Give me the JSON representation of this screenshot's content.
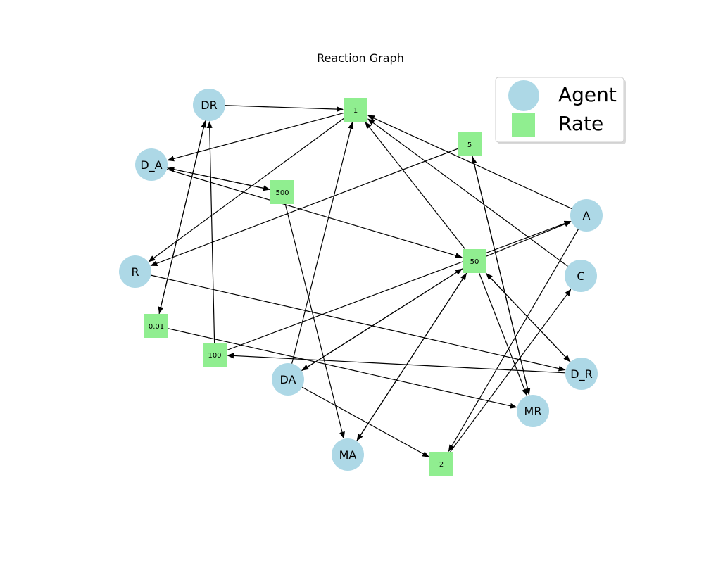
{
  "title": "Reaction Graph",
  "legend": {
    "entries": [
      {
        "label": "Agent",
        "kind": "agent"
      },
      {
        "label": "Rate",
        "kind": "rate"
      }
    ],
    "placement": "top-right"
  },
  "colors": {
    "agent": "#add8e6",
    "rate": "#90ee90",
    "edge": "#000000"
  },
  "nodes": [
    {
      "id": "DR",
      "label": "DR",
      "kind": "agent"
    },
    {
      "id": "D_A",
      "label": "D_A",
      "kind": "agent"
    },
    {
      "id": "R",
      "label": "R",
      "kind": "agent"
    },
    {
      "id": "DA",
      "label": "DA",
      "kind": "agent"
    },
    {
      "id": "MA",
      "label": "MA",
      "kind": "agent"
    },
    {
      "id": "MR",
      "label": "MR",
      "kind": "agent"
    },
    {
      "id": "D_R",
      "label": "D_R",
      "kind": "agent"
    },
    {
      "id": "C",
      "label": "C",
      "kind": "agent"
    },
    {
      "id": "A",
      "label": "A",
      "kind": "agent"
    },
    {
      "id": "r1",
      "label": "1",
      "kind": "rate"
    },
    {
      "id": "r5",
      "label": "5",
      "kind": "rate"
    },
    {
      "id": "r500",
      "label": "500",
      "kind": "rate"
    },
    {
      "id": "r50",
      "label": "50",
      "kind": "rate"
    },
    {
      "id": "r001",
      "label": "0.01",
      "kind": "rate"
    },
    {
      "id": "r100",
      "label": "100",
      "kind": "rate"
    },
    {
      "id": "r2",
      "label": "2",
      "kind": "rate"
    }
  ],
  "edges": [
    {
      "from": "DR",
      "to": "r1"
    },
    {
      "from": "r1",
      "to": "D_A"
    },
    {
      "from": "r1",
      "to": "R"
    },
    {
      "from": "A",
      "to": "r1"
    },
    {
      "from": "C",
      "to": "r1"
    },
    {
      "from": "r50",
      "to": "r1"
    },
    {
      "from": "DA",
      "to": "r1"
    },
    {
      "from": "D_A",
      "to": "r500"
    },
    {
      "from": "r500",
      "to": "D_A"
    },
    {
      "from": "r500",
      "to": "MA"
    },
    {
      "from": "D_A",
      "to": "r50"
    },
    {
      "from": "r5",
      "to": "R"
    },
    {
      "from": "r5",
      "to": "MR"
    },
    {
      "from": "MR",
      "to": "r5"
    },
    {
      "from": "r50",
      "to": "A"
    },
    {
      "from": "r100",
      "to": "A"
    },
    {
      "from": "r50",
      "to": "DA"
    },
    {
      "from": "DA",
      "to": "r50"
    },
    {
      "from": "r50",
      "to": "MA"
    },
    {
      "from": "MA",
      "to": "r50"
    },
    {
      "from": "r50",
      "to": "D_R"
    },
    {
      "from": "D_R",
      "to": "r50"
    },
    {
      "from": "r50",
      "to": "MR"
    },
    {
      "from": "A",
      "to": "r2"
    },
    {
      "from": "r2",
      "to": "C"
    },
    {
      "from": "DA",
      "to": "r2"
    },
    {
      "from": "D_R",
      "to": "r100"
    },
    {
      "from": "r100",
      "to": "DR"
    },
    {
      "from": "DR",
      "to": "r001"
    },
    {
      "from": "r001",
      "to": "DR"
    },
    {
      "from": "r001",
      "to": "MR"
    },
    {
      "from": "R",
      "to": "D_R"
    }
  ]
}
